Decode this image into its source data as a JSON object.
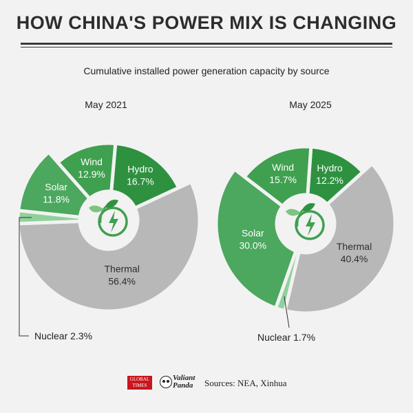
{
  "header": {
    "title": "HOW CHINA'S POWER MIX IS CHANGING",
    "subtitle": "Cumulative installed power generation capacity by source"
  },
  "chart_data": [
    {
      "type": "pie",
      "title": "May 2021",
      "unit": "%",
      "slices": [
        {
          "label": "Hydro",
          "value": 16.7,
          "display": "16.7%",
          "color": "#2e9140"
        },
        {
          "label": "Thermal",
          "value": 56.4,
          "display": "56.4%",
          "color": "#b8b8b8"
        },
        {
          "label": "Nuclear",
          "value": 2.3,
          "display": "2.3%",
          "color": "#8fd19a"
        },
        {
          "label": "Solar",
          "value": 11.8,
          "display": "11.8%",
          "color": "#4ba85e"
        },
        {
          "label": "Wind",
          "value": 12.9,
          "display": "12.9%",
          "color": "#3fa04f"
        }
      ]
    },
    {
      "type": "pie",
      "title": "May 2025",
      "unit": "%",
      "slices": [
        {
          "label": "Hydro",
          "value": 12.2,
          "display": "12.2%",
          "color": "#2e9140"
        },
        {
          "label": "Thermal",
          "value": 40.4,
          "display": "40.4%",
          "color": "#b8b8b8"
        },
        {
          "label": "Nuclear",
          "value": 1.7,
          "display": "1.7%",
          "color": "#8fd19a"
        },
        {
          "label": "Solar",
          "value": 30.0,
          "display": "30.0%",
          "color": "#4ba85e"
        },
        {
          "label": "Wind",
          "value": 15.7,
          "display": "15.7%",
          "color": "#3fa04f"
        }
      ]
    }
  ],
  "footer": {
    "logo_global_times": "GLOBAL TIMES",
    "logo_valiant_panda": "Valiant Panda",
    "sources": "Sources: NEA, Xinhua"
  }
}
